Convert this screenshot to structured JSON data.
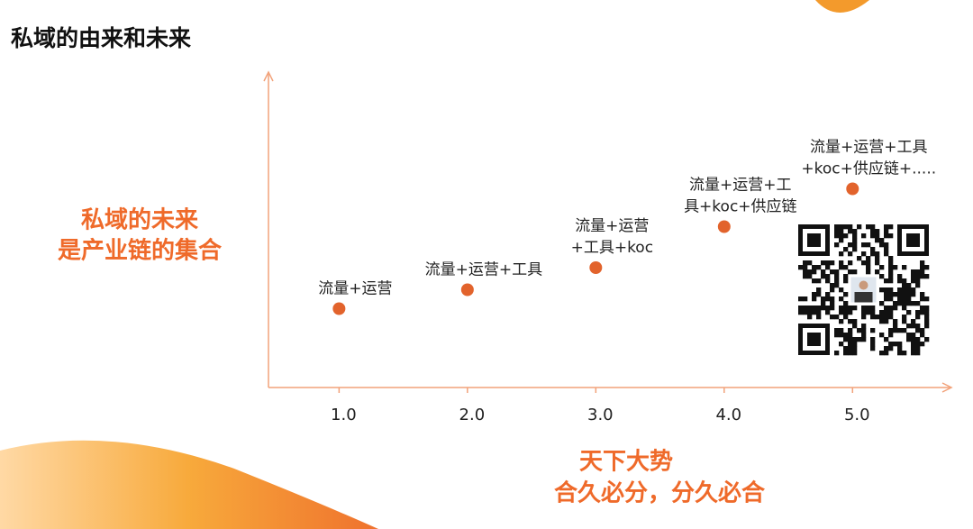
{
  "slide": {
    "title": "私域的由来和未来",
    "left_text": [
      "私域的未来",
      "是产业链的集合"
    ],
    "bottom_text": [
      "天下大势",
      "合久必分，分久必合"
    ]
  },
  "chart_data": {
    "type": "scatter",
    "color": "#e2632c",
    "x": [
      1,
      2,
      3,
      4,
      5
    ],
    "y": [
      2.5,
      3.1,
      3.8,
      5.1,
      6.3
    ],
    "point_labels": [
      [
        "流量+运营"
      ],
      [
        "流量+运营+工具"
      ],
      [
        "流量+运营",
        "+工具+koc"
      ],
      [
        "流量+运营+工",
        "具+koc+供应链"
      ],
      [
        "流量+运营+工具",
        "+koc+供应链+....."
      ]
    ],
    "xlim": [
      0.45,
      5.77
    ],
    "ylim": [
      0,
      10
    ],
    "xticks": [
      {
        "value": 1,
        "label": "1.0"
      },
      {
        "value": 2,
        "label": "2.0"
      },
      {
        "value": 3,
        "label": "3.0"
      },
      {
        "value": 4,
        "label": "4.0"
      },
      {
        "value": 5,
        "label": "5.0"
      }
    ]
  }
}
